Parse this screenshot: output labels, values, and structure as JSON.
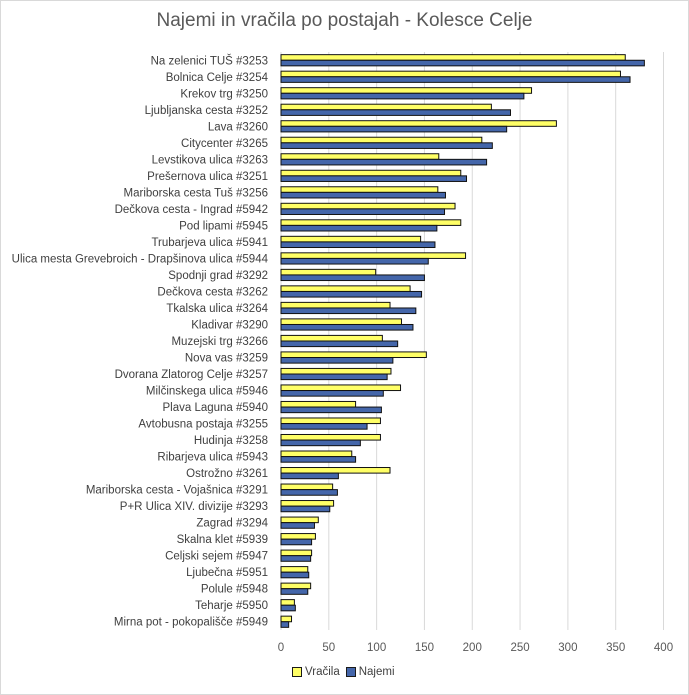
{
  "chart_data": {
    "type": "bar",
    "orientation": "horizontal",
    "title": "Najemi in vračila po postajah - Kolesce Celje",
    "xlabel": "",
    "ylabel": "",
    "xlim": [
      0,
      400
    ],
    "xticks": [
      0,
      50,
      100,
      150,
      200,
      250,
      300,
      350,
      400
    ],
    "grid": "vertical",
    "legend_position": "bottom",
    "categories": [
      "Na zelenici TUŠ  #3253",
      "Bolnica Celje #3254",
      "Krekov trg #3250",
      "Ljubljanska cesta #3252",
      "Lava #3260",
      "Citycenter #3265",
      "Levstikova ulica #3263",
      "Prešernova ulica #3251",
      "Mariborska cesta Tuš #3256",
      "Dečkova cesta - Ingrad #5942",
      "Pod lipami #5945",
      "Trubarjeva ulica #5941",
      "Ulica mesta Grevebroich - Drapšinova ulica #5944",
      "Spodnji grad #3292",
      "Dečkova cesta #3262",
      "Tkalska ulica #3264",
      "Kladivar #3290",
      "Muzejski trg #3266",
      "Nova vas #3259",
      "Dvorana Zlatorog Celje #3257",
      "Milčinskega ulica #5946",
      "Plava Laguna #5940",
      "Avtobusna postaja #3255",
      "Hudinja #3258",
      "Ribarjeva ulica #5943",
      "Ostrožno #3261",
      "Mariborska cesta - Vojašnica #3291",
      "P+R Ulica XIV. divizije #3293",
      "Zagrad #3294",
      "Skalna klet #5939",
      "Celjski sejem #5947",
      "Ljubečna #5951",
      "Polule #5948",
      "Teharje #5950",
      "Mirna pot - pokopališče #5949"
    ],
    "series": [
      {
        "name": "Vračila",
        "color": "#ffff66",
        "values": [
          360,
          355,
          262,
          220,
          288,
          210,
          165,
          188,
          164,
          182,
          188,
          146,
          193,
          99,
          135,
          114,
          126,
          106,
          152,
          115,
          125,
          78,
          104,
          104,
          74,
          114,
          54,
          55,
          39,
          36,
          32,
          28,
          31,
          14,
          11
        ]
      },
      {
        "name": "Najemi",
        "color": "#4466aa",
        "values": [
          380,
          365,
          254,
          240,
          236,
          221,
          215,
          194,
          172,
          171,
          163,
          161,
          154,
          150,
          147,
          141,
          138,
          122,
          117,
          111,
          107,
          105,
          90,
          83,
          78,
          60,
          59,
          51,
          35,
          32,
          31,
          29,
          28,
          15,
          8
        ]
      }
    ]
  }
}
